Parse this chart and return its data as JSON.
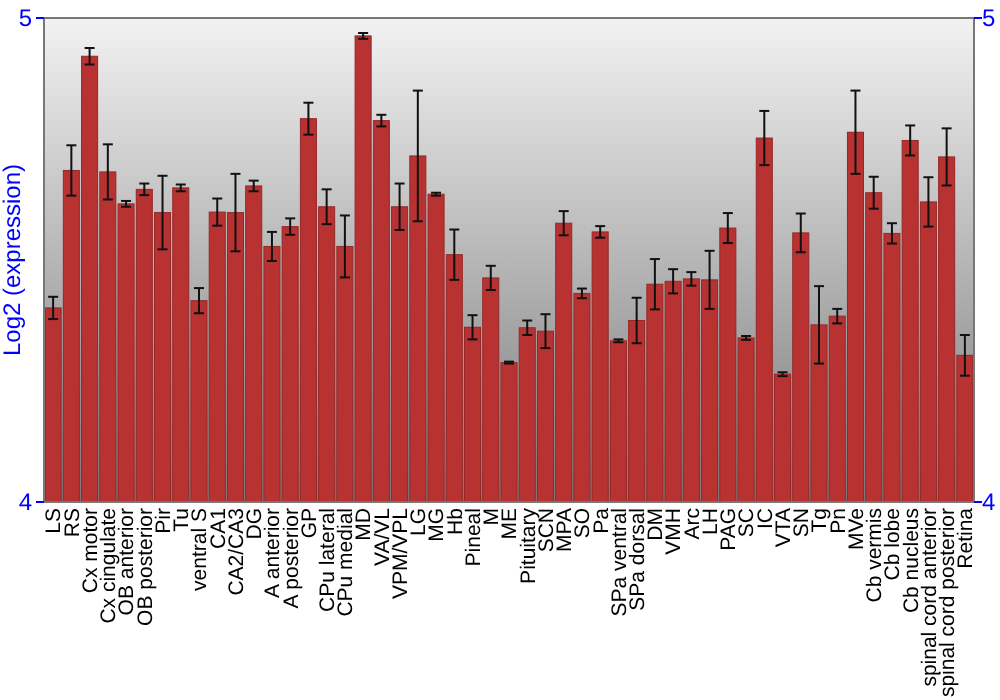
{
  "chart_data": {
    "type": "bar",
    "ylabel": "Log2 (expression)",
    "categories": [
      "LS",
      "RS",
      "Cx motor",
      "Cx cingulate",
      "OB anterior",
      "OB posterior",
      "Pir",
      "Tu",
      "ventral S",
      "CA1",
      "CA2/CA3",
      "DG",
      "A anterior",
      "A posterior",
      "GP",
      "CPu lateral",
      "CPu medial",
      "MD",
      "VA/VL",
      "VPM/VPL",
      "LG",
      "MG",
      "Hb",
      "Pineal",
      "M",
      "ME",
      "Pituitary",
      "SCN",
      "MPA",
      "SO",
      "Pa",
      "SPa ventral",
      "SPa dorsal",
      "DM",
      "VMH",
      "Arc",
      "LH",
      "PAG",
      "SC",
      "IC",
      "VTA",
      "SN",
      "Tg",
      "Pn",
      "MVe",
      "Cb vermis",
      "Cb lobe",
      "Cb nucleus",
      "spinal cord anterior",
      "spinal cord posterior",
      "Retina"
    ],
    "values": [
      4.401,
      4.685,
      4.921,
      4.682,
      4.616,
      4.646,
      4.598,
      4.649,
      4.416,
      4.599,
      4.598,
      4.653,
      4.528,
      4.569,
      4.792,
      4.61,
      4.528,
      4.963,
      4.788,
      4.61,
      4.715,
      4.636,
      4.511,
      4.361,
      4.463,
      4.288,
      4.36,
      4.353,
      4.576,
      4.431,
      4.558,
      4.333,
      4.375,
      4.45,
      4.456,
      4.461,
      4.459,
      4.566,
      4.339,
      4.752,
      4.264,
      4.556,
      4.366,
      4.384,
      4.764,
      4.639,
      4.555,
      4.747,
      4.62,
      4.713,
      4.303
    ],
    "errors": [
      0.023,
      0.052,
      0.017,
      0.057,
      0.006,
      0.012,
      0.076,
      0.007,
      0.026,
      0.028,
      0.08,
      0.011,
      0.03,
      0.017,
      0.033,
      0.036,
      0.064,
      0.006,
      0.012,
      0.048,
      0.135,
      0.003,
      0.052,
      0.025,
      0.025,
      0.002,
      0.015,
      0.035,
      0.025,
      0.01,
      0.012,
      0.003,
      0.047,
      0.052,
      0.025,
      0.014,
      0.06,
      0.031,
      0.004,
      0.056,
      0.004,
      0.04,
      0.08,
      0.015,
      0.086,
      0.033,
      0.021,
      0.031,
      0.051,
      0.059,
      0.042
    ],
    "color": "#b83232",
    "ylim": [
      4,
      5
    ],
    "yticks": [
      4,
      5
    ],
    "y2lim": [
      4,
      5
    ],
    "y2ticks": [
      4,
      5
    ]
  }
}
